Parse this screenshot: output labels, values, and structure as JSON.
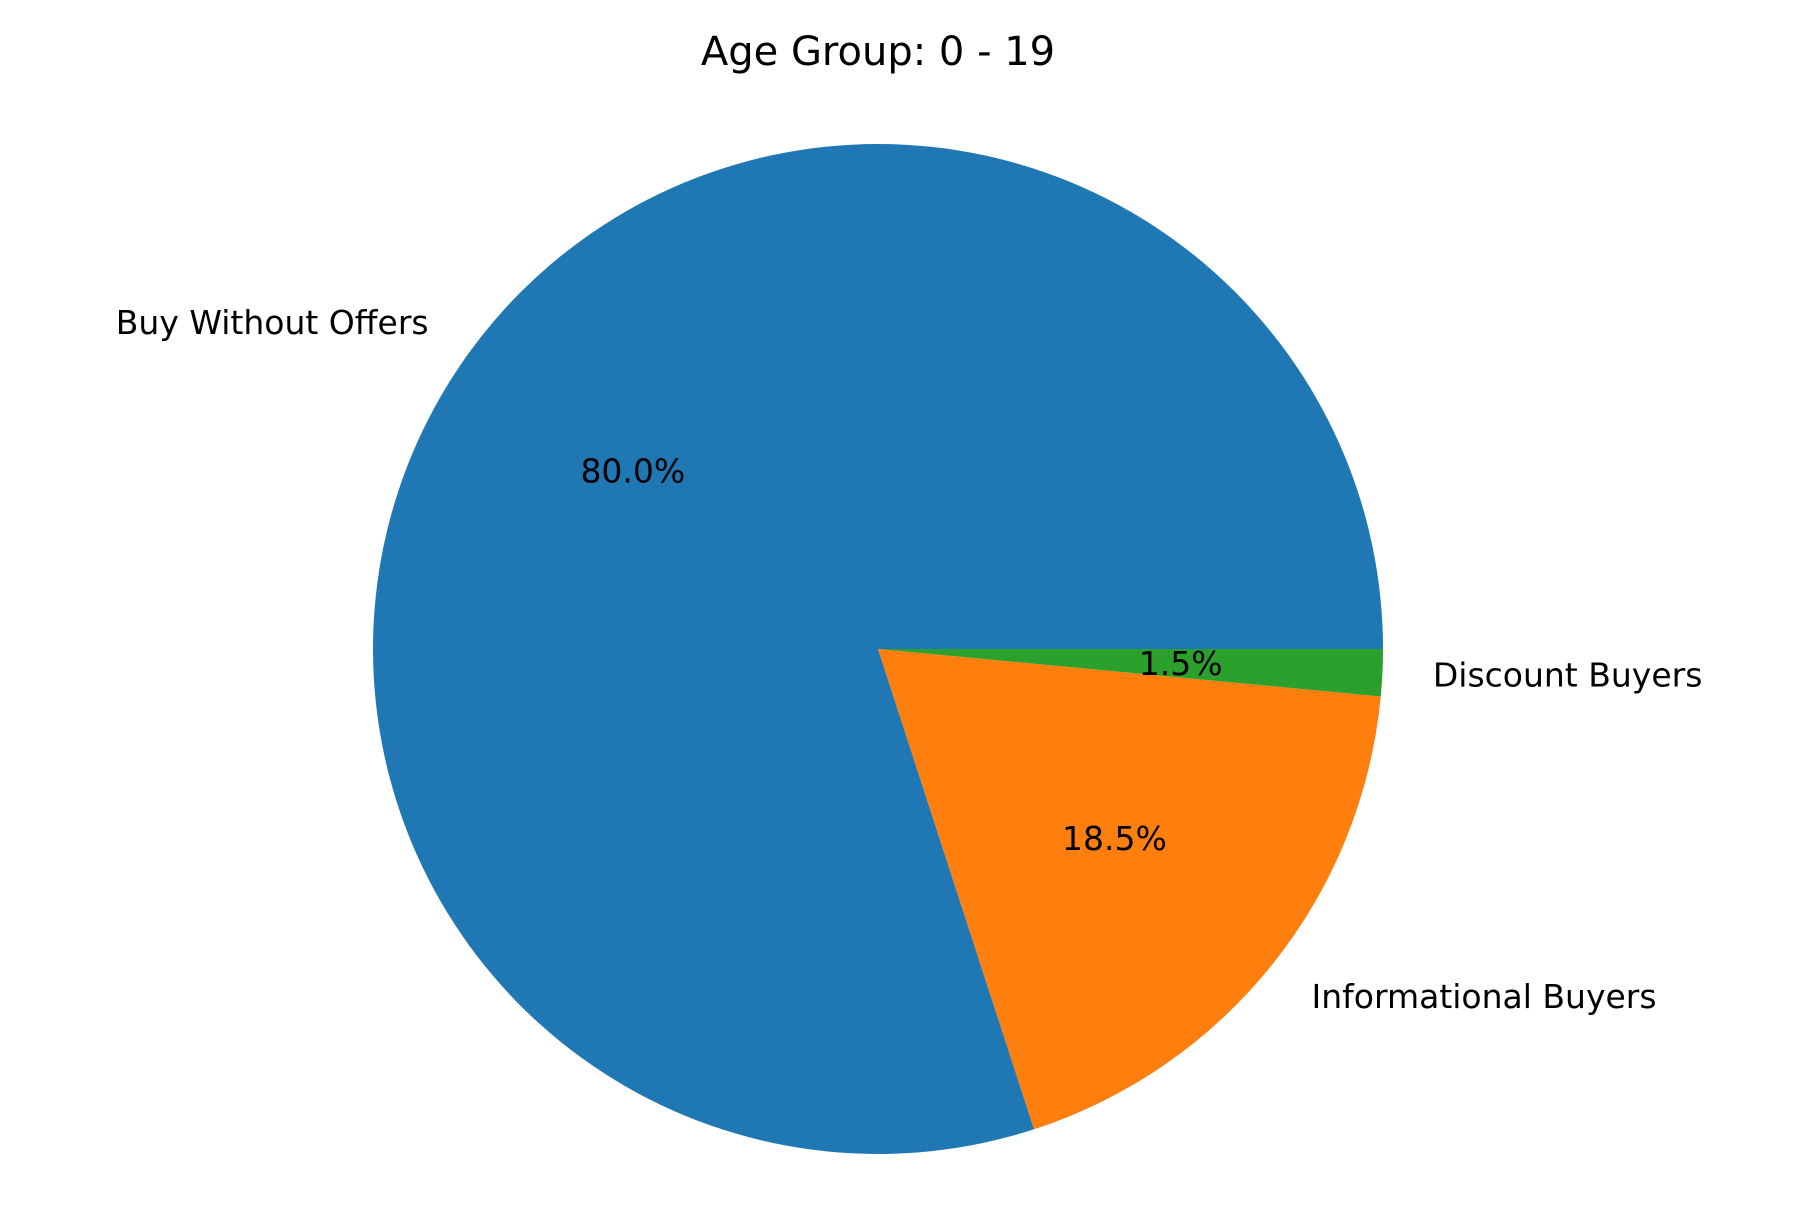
{
  "chart_data": {
    "type": "pie",
    "title": "Age Group: 0 - 19",
    "slices": [
      {
        "label": "Buy Without Offers",
        "value": 80.0,
        "pct_label": "80.0%",
        "color": "#1f77b4"
      },
      {
        "label": "Informational Buyers",
        "value": 18.5,
        "pct_label": "18.5%",
        "color": "#ff7f0e"
      },
      {
        "label": "Discount Buyers",
        "value": 1.5,
        "pct_label": "1.5%",
        "color": "#2ca02c"
      }
    ],
    "start_angle_deg": 0,
    "direction": "counterclockwise"
  }
}
